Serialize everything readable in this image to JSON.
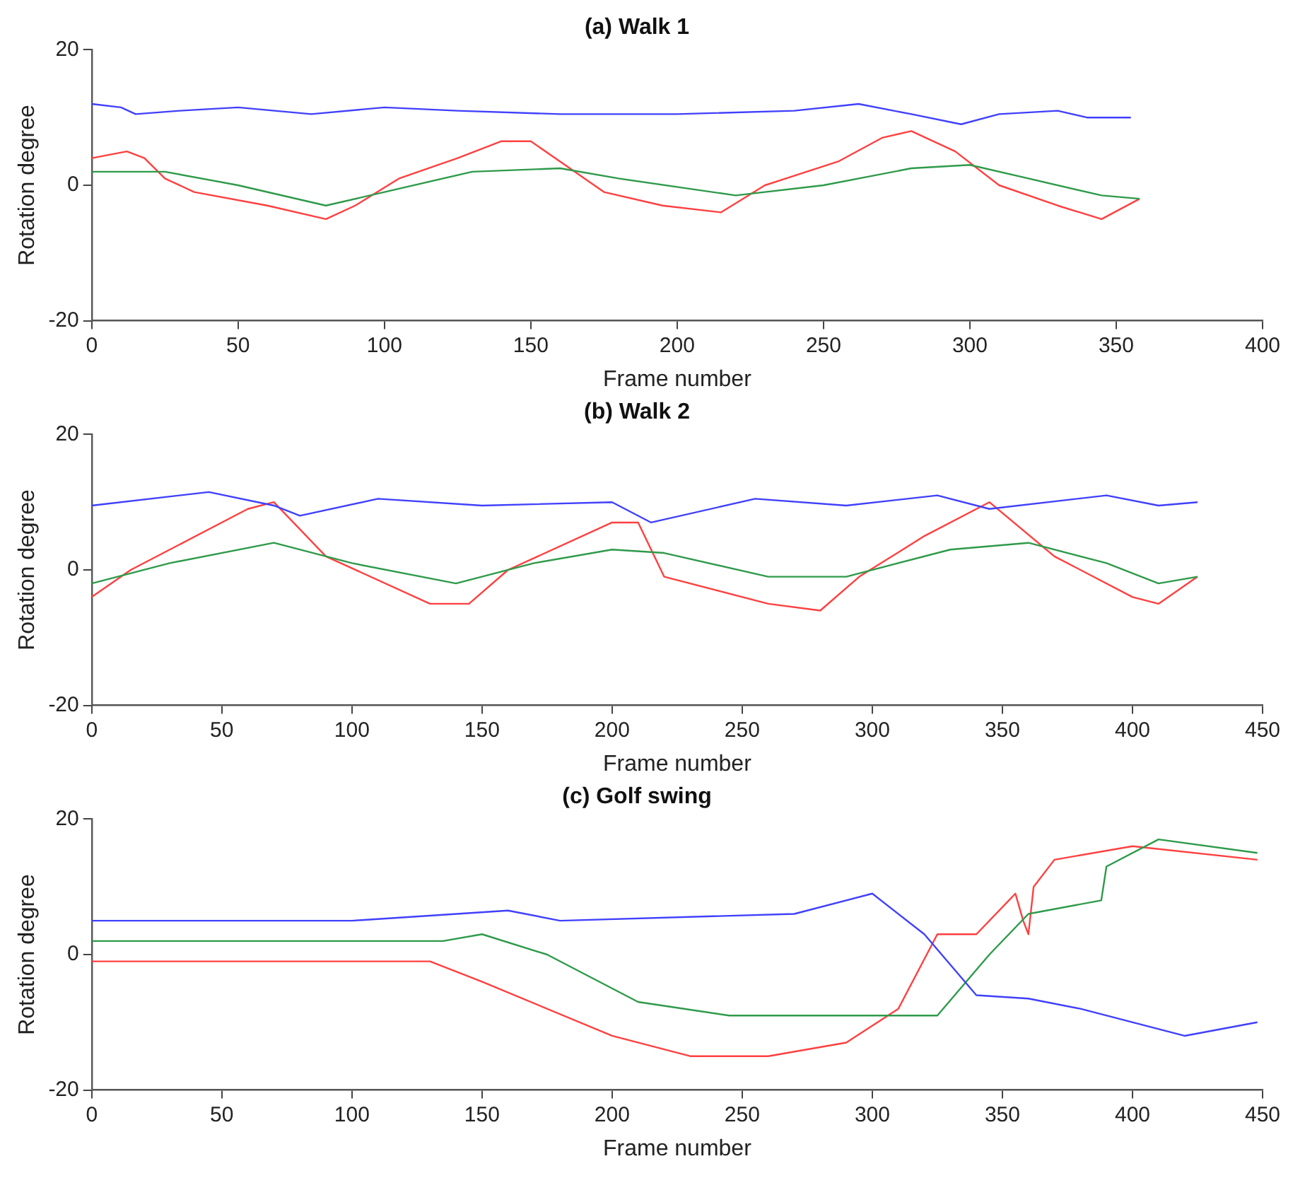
{
  "chart_data": [
    {
      "type": "line",
      "title": "(a) Walk 1",
      "xlabel": "Frame number",
      "ylabel": "Rotation degree",
      "xlim": [
        0,
        400
      ],
      "xticks": [
        0,
        50,
        100,
        150,
        200,
        250,
        300,
        350,
        400
      ],
      "ylim": [
        -20,
        20
      ],
      "yticks": [
        -20,
        0,
        20
      ],
      "grid": false,
      "legend": false,
      "series": [
        {
          "color": "#4040ff",
          "x": [
            0,
            10,
            15,
            30,
            50,
            75,
            100,
            125,
            160,
            200,
            240,
            262,
            280,
            297,
            310,
            330,
            340,
            355
          ],
          "values": [
            12,
            11.5,
            10.5,
            11,
            11.5,
            10.5,
            11.5,
            11,
            10.5,
            10.5,
            11,
            12,
            10.5,
            9,
            10.5,
            11,
            10,
            10
          ]
        },
        {
          "color": "#2e9a4a",
          "x": [
            0,
            25,
            50,
            80,
            100,
            130,
            160,
            180,
            220,
            250,
            280,
            300,
            320,
            345,
            358
          ],
          "values": [
            2,
            2,
            0,
            -3,
            -1,
            2,
            2.5,
            1,
            -1.5,
            0,
            2.5,
            3,
            1,
            -1.5,
            -2
          ]
        },
        {
          "color": "#ff4040",
          "x": [
            0,
            12,
            18,
            25,
            35,
            60,
            80,
            90,
            105,
            125,
            140,
            150,
            165,
            175,
            195,
            215,
            230,
            255,
            270,
            280,
            295,
            310,
            330,
            345,
            358
          ],
          "values": [
            4,
            5,
            4,
            1,
            -1,
            -3,
            -5,
            -3,
            1,
            4,
            6.5,
            6.5,
            2,
            -1,
            -3,
            -4,
            0,
            3.5,
            7,
            8,
            5,
            0,
            -3,
            -5,
            -2
          ]
        }
      ]
    },
    {
      "type": "line",
      "title": "(b) Walk 2",
      "xlabel": "Frame number",
      "ylabel": "Rotation degree",
      "xlim": [
        0,
        450
      ],
      "xticks": [
        0,
        50,
        100,
        150,
        200,
        250,
        300,
        350,
        400,
        450
      ],
      "ylim": [
        -20,
        20
      ],
      "yticks": [
        -20,
        0,
        20
      ],
      "grid": false,
      "legend": false,
      "series": [
        {
          "color": "#4040ff",
          "x": [
            0,
            45,
            70,
            80,
            110,
            150,
            200,
            215,
            255,
            290,
            325,
            345,
            390,
            410,
            425
          ],
          "values": [
            9.5,
            11.5,
            9.5,
            8,
            10.5,
            9.5,
            10,
            7,
            10.5,
            9.5,
            11,
            9,
            11,
            9.5,
            10
          ]
        },
        {
          "color": "#2e9a4a",
          "x": [
            0,
            30,
            70,
            100,
            140,
            170,
            200,
            220,
            260,
            290,
            330,
            360,
            390,
            410,
            425
          ],
          "values": [
            -2,
            1,
            4,
            1,
            -2,
            1,
            3,
            2.5,
            -1,
            -1,
            3,
            4,
            1,
            -2,
            -1
          ]
        },
        {
          "color": "#ff4040",
          "x": [
            0,
            15,
            30,
            60,
            70,
            90,
            130,
            145,
            160,
            200,
            210,
            220,
            260,
            280,
            295,
            320,
            345,
            370,
            400,
            410,
            425
          ],
          "values": [
            -4,
            0,
            3,
            9,
            10,
            2,
            -5,
            -5,
            0,
            7,
            7,
            -1,
            -5,
            -6,
            -1,
            5,
            10,
            2,
            -4,
            -5,
            -1
          ]
        }
      ]
    },
    {
      "type": "line",
      "title": "(c) Golf swing",
      "xlabel": "Frame number",
      "ylabel": "Rotation degree",
      "xlim": [
        0,
        450
      ],
      "xticks": [
        0,
        50,
        100,
        150,
        200,
        250,
        300,
        350,
        400,
        450
      ],
      "ylim": [
        -20,
        20
      ],
      "yticks": [
        -20,
        0,
        20
      ],
      "grid": false,
      "legend": false,
      "series": [
        {
          "color": "#4040ff",
          "x": [
            0,
            100,
            160,
            180,
            270,
            300,
            320,
            340,
            360,
            380,
            420,
            448
          ],
          "values": [
            5,
            5,
            6.5,
            5,
            6,
            9,
            3,
            -6,
            -6.5,
            -8,
            -12,
            -10
          ]
        },
        {
          "color": "#2e9a4a",
          "x": [
            0,
            135,
            150,
            175,
            210,
            245,
            300,
            325,
            345,
            360,
            388,
            390,
            410,
            448
          ],
          "values": [
            2,
            2,
            3,
            0,
            -7,
            -9,
            -9,
            -9,
            0,
            6,
            8,
            13,
            17,
            15
          ]
        },
        {
          "color": "#ff4040",
          "x": [
            0,
            130,
            150,
            200,
            230,
            260,
            290,
            310,
            325,
            340,
            355,
            358,
            360,
            362,
            370,
            400,
            448
          ],
          "values": [
            -1,
            -1,
            -4,
            -12,
            -15,
            -15,
            -13,
            -8,
            3,
            3,
            9,
            5,
            3,
            10,
            14,
            16,
            14
          ]
        }
      ]
    }
  ]
}
